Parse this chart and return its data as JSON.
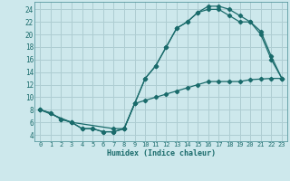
{
  "xlabel": "Humidex (Indice chaleur)",
  "bg_color": "#cde8ec",
  "grid_color": "#aecdd2",
  "line_color": "#1a6b6b",
  "xlim": [
    -0.5,
    23.5
  ],
  "ylim": [
    3,
    25.2
  ],
  "xticks": [
    0,
    1,
    2,
    3,
    4,
    5,
    6,
    7,
    8,
    9,
    10,
    11,
    12,
    13,
    14,
    15,
    16,
    17,
    18,
    19,
    20,
    21,
    22,
    23
  ],
  "yticks": [
    4,
    6,
    8,
    10,
    12,
    14,
    16,
    18,
    20,
    22,
    24
  ],
  "line1_x": [
    0,
    1,
    2,
    3,
    4,
    5,
    6,
    7,
    8,
    9,
    10,
    11,
    12,
    13,
    14,
    15,
    16,
    17,
    18,
    19,
    20,
    21,
    22,
    23
  ],
  "line1_y": [
    8,
    7.5,
    6.5,
    6,
    5,
    5,
    4.5,
    4.5,
    5,
    9,
    13,
    15,
    18,
    21,
    22,
    23.5,
    24.5,
    24.5,
    24,
    23,
    22,
    20.5,
    16.5,
    13
  ],
  "line2_x": [
    0,
    1,
    2,
    3,
    4,
    5,
    6,
    7,
    8,
    9,
    10,
    11,
    12,
    13,
    14,
    15,
    16,
    17,
    18,
    19,
    20,
    21,
    22,
    23
  ],
  "line2_y": [
    8,
    7.5,
    6.5,
    6,
    5,
    5,
    4.5,
    4.5,
    5,
    9,
    13,
    15,
    18,
    21,
    22,
    23.5,
    24,
    24,
    23,
    22,
    22,
    20,
    16,
    13
  ],
  "line3_x": [
    0,
    3,
    7,
    8,
    9,
    10,
    11,
    12,
    13,
    14,
    15,
    16,
    17,
    18,
    19,
    20,
    21,
    22,
    23
  ],
  "line3_y": [
    8,
    6,
    5,
    5,
    9,
    9.5,
    10,
    10.5,
    11,
    11.5,
    12,
    12.5,
    12.5,
    12.5,
    12.5,
    12.8,
    12.9,
    13,
    13
  ]
}
